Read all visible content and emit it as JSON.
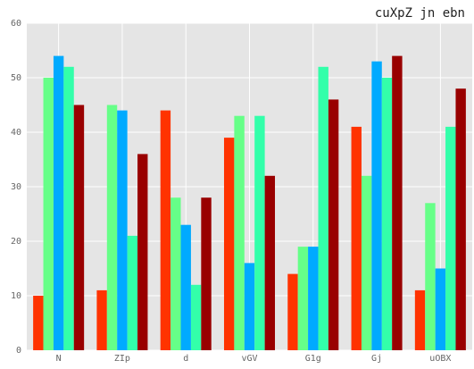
{
  "chart_data": {
    "type": "bar",
    "title": "cuXpZ jn ebn",
    "categories": [
      "N",
      "ZIp",
      "d",
      "vGV",
      "G1g",
      "Gj",
      "uOBX"
    ],
    "series": [
      {
        "values": [
          10,
          11,
          44,
          39,
          14,
          41,
          11
        ],
        "color": "#ff3300"
      },
      {
        "values": [
          50,
          45,
          28,
          43,
          19,
          32,
          27
        ],
        "color": "#66ff88"
      },
      {
        "values": [
          54,
          44,
          23,
          16,
          19,
          53,
          15
        ],
        "color": "#00aaff"
      },
      {
        "values": [
          52,
          21,
          12,
          43,
          52,
          50,
          41
        ],
        "color": "#33ffaa"
      },
      {
        "values": [
          45,
          36,
          28,
          32,
          46,
          54,
          48
        ],
        "color": "#990000"
      }
    ],
    "ylim": [
      0,
      60
    ],
    "yticks": [
      0,
      10,
      20,
      30,
      40,
      50,
      60
    ],
    "grid": true,
    "background": "#e5e5e5"
  }
}
